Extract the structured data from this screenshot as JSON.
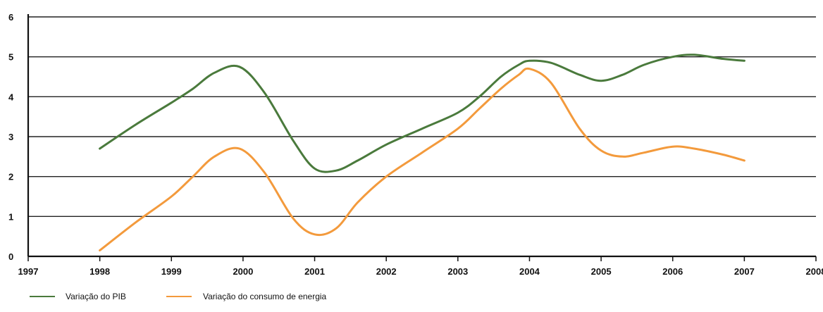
{
  "chart_data": {
    "type": "line",
    "title": "",
    "xlabel": "",
    "ylabel": "",
    "xlim": [
      1997,
      2008
    ],
    "ylim": [
      0,
      6
    ],
    "x_ticks": [
      1997,
      1998,
      1999,
      2000,
      2001,
      2002,
      2003,
      2004,
      2005,
      2006,
      2007,
      2008
    ],
    "y_ticks": [
      0,
      1,
      2,
      3,
      4,
      5,
      6
    ],
    "grid": "horizontal",
    "legend_position": "bottom-left",
    "smooth": true,
    "series": [
      {
        "name": "Variação do PIB",
        "color": "#4a7a3c",
        "x": [
          1998,
          1998.5,
          1999,
          1999.3,
          1999.6,
          1999.95,
          2000.3,
          2000.7,
          2001,
          2001.3,
          2001.6,
          2002,
          2002.5,
          2003,
          2003.3,
          2003.6,
          2003.85,
          2004,
          2004.3,
          2004.7,
          2005,
          2005.3,
          2005.6,
          2006,
          2006.3,
          2006.7,
          2007
        ],
        "values": [
          2.7,
          3.3,
          3.85,
          4.2,
          4.6,
          4.75,
          4.1,
          2.9,
          2.2,
          2.15,
          2.4,
          2.8,
          3.2,
          3.6,
          4.0,
          4.5,
          4.8,
          4.9,
          4.85,
          4.55,
          4.4,
          4.55,
          4.8,
          5.0,
          5.05,
          4.95,
          4.9
        ]
      },
      {
        "name": "Variação do consumo de energia",
        "color": "#f39a3c",
        "x": [
          1998,
          1998.5,
          1999,
          1999.3,
          1999.6,
          1999.95,
          2000.3,
          2000.7,
          2001,
          2001.3,
          2001.6,
          2002,
          2002.5,
          2003,
          2003.3,
          2003.6,
          2003.85,
          2004,
          2004.3,
          2004.7,
          2005,
          2005.3,
          2005.6,
          2006,
          2006.3,
          2006.7,
          2007
        ],
        "values": [
          0.15,
          0.85,
          1.5,
          2.0,
          2.5,
          2.7,
          2.1,
          0.95,
          0.55,
          0.7,
          1.35,
          2.0,
          2.6,
          3.2,
          3.7,
          4.2,
          4.55,
          4.7,
          4.35,
          3.2,
          2.65,
          2.5,
          2.6,
          2.75,
          2.7,
          2.55,
          2.4
        ]
      }
    ]
  }
}
